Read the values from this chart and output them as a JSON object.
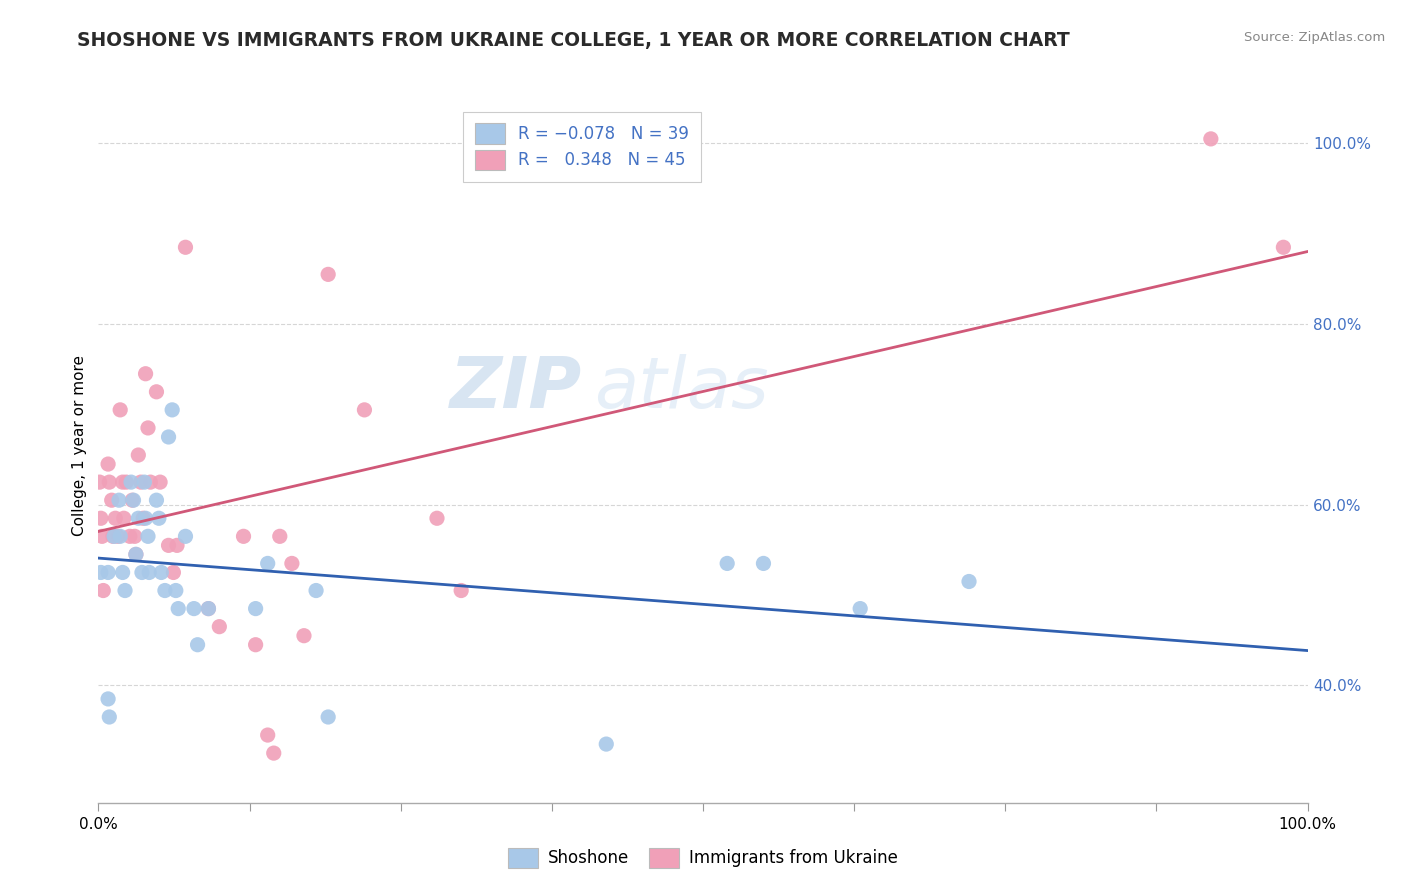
{
  "title": "SHOSHONE VS IMMIGRANTS FROM UKRAINE COLLEGE, 1 YEAR OR MORE CORRELATION CHART",
  "source_text": "Source: ZipAtlas.com",
  "ylabel": "College, 1 year or more",
  "legend_label1": "Shoshone",
  "legend_label2": "Immigrants from Ukraine",
  "R1": -0.078,
  "N1": 39,
  "R2": 0.348,
  "N2": 45,
  "xlim": [
    0.0,
    1.0
  ],
  "ylim": [
    0.27,
    1.06
  ],
  "ytick_positions": [
    0.4,
    0.6,
    0.8,
    1.0
  ],
  "ytick_labels": [
    "40.0%",
    "60.0%",
    "80.0%",
    "100.0%"
  ],
  "color_blue": "#A8C8E8",
  "color_pink": "#F0A0B8",
  "line_color_blue": "#3060B0",
  "line_color_pink": "#D05878",
  "background_color": "#FFFFFF",
  "watermark_zip": "ZIP",
  "watermark_atlas": "atlas",
  "grid_color": "#CCCCCC",
  "title_fontsize": 13.5,
  "axis_label_fontsize": 11,
  "tick_fontsize": 11,
  "legend_fontsize": 12,
  "shoshone_x": [
    0.002,
    0.008,
    0.008,
    0.009,
    0.013,
    0.017,
    0.018,
    0.02,
    0.022,
    0.027,
    0.029,
    0.031,
    0.033,
    0.036,
    0.038,
    0.039,
    0.041,
    0.042,
    0.048,
    0.05,
    0.052,
    0.055,
    0.058,
    0.061,
    0.064,
    0.066,
    0.072,
    0.079,
    0.082,
    0.091,
    0.13,
    0.14,
    0.18,
    0.19,
    0.42,
    0.52,
    0.55,
    0.63,
    0.72
  ],
  "shoshone_y": [
    0.525,
    0.525,
    0.385,
    0.365,
    0.565,
    0.605,
    0.565,
    0.525,
    0.505,
    0.625,
    0.605,
    0.545,
    0.585,
    0.525,
    0.625,
    0.585,
    0.565,
    0.525,
    0.605,
    0.585,
    0.525,
    0.505,
    0.675,
    0.705,
    0.505,
    0.485,
    0.565,
    0.485,
    0.445,
    0.485,
    0.485,
    0.535,
    0.505,
    0.365,
    0.335,
    0.535,
    0.535,
    0.485,
    0.515
  ],
  "ukraine_x": [
    0.001,
    0.002,
    0.003,
    0.004,
    0.008,
    0.009,
    0.011,
    0.012,
    0.014,
    0.016,
    0.018,
    0.02,
    0.021,
    0.023,
    0.026,
    0.028,
    0.03,
    0.031,
    0.033,
    0.035,
    0.037,
    0.039,
    0.041,
    0.043,
    0.048,
    0.051,
    0.058,
    0.062,
    0.065,
    0.072,
    0.091,
    0.1,
    0.12,
    0.13,
    0.14,
    0.145,
    0.15,
    0.16,
    0.17,
    0.19,
    0.22,
    0.28,
    0.3,
    0.92,
    0.98
  ],
  "ukraine_y": [
    0.625,
    0.585,
    0.565,
    0.505,
    0.645,
    0.625,
    0.605,
    0.565,
    0.585,
    0.565,
    0.705,
    0.625,
    0.585,
    0.625,
    0.565,
    0.605,
    0.565,
    0.545,
    0.655,
    0.625,
    0.585,
    0.745,
    0.685,
    0.625,
    0.725,
    0.625,
    0.555,
    0.525,
    0.555,
    0.885,
    0.485,
    0.465,
    0.565,
    0.445,
    0.345,
    0.325,
    0.565,
    0.535,
    0.455,
    0.855,
    0.705,
    0.585,
    0.505,
    1.005,
    0.885
  ]
}
